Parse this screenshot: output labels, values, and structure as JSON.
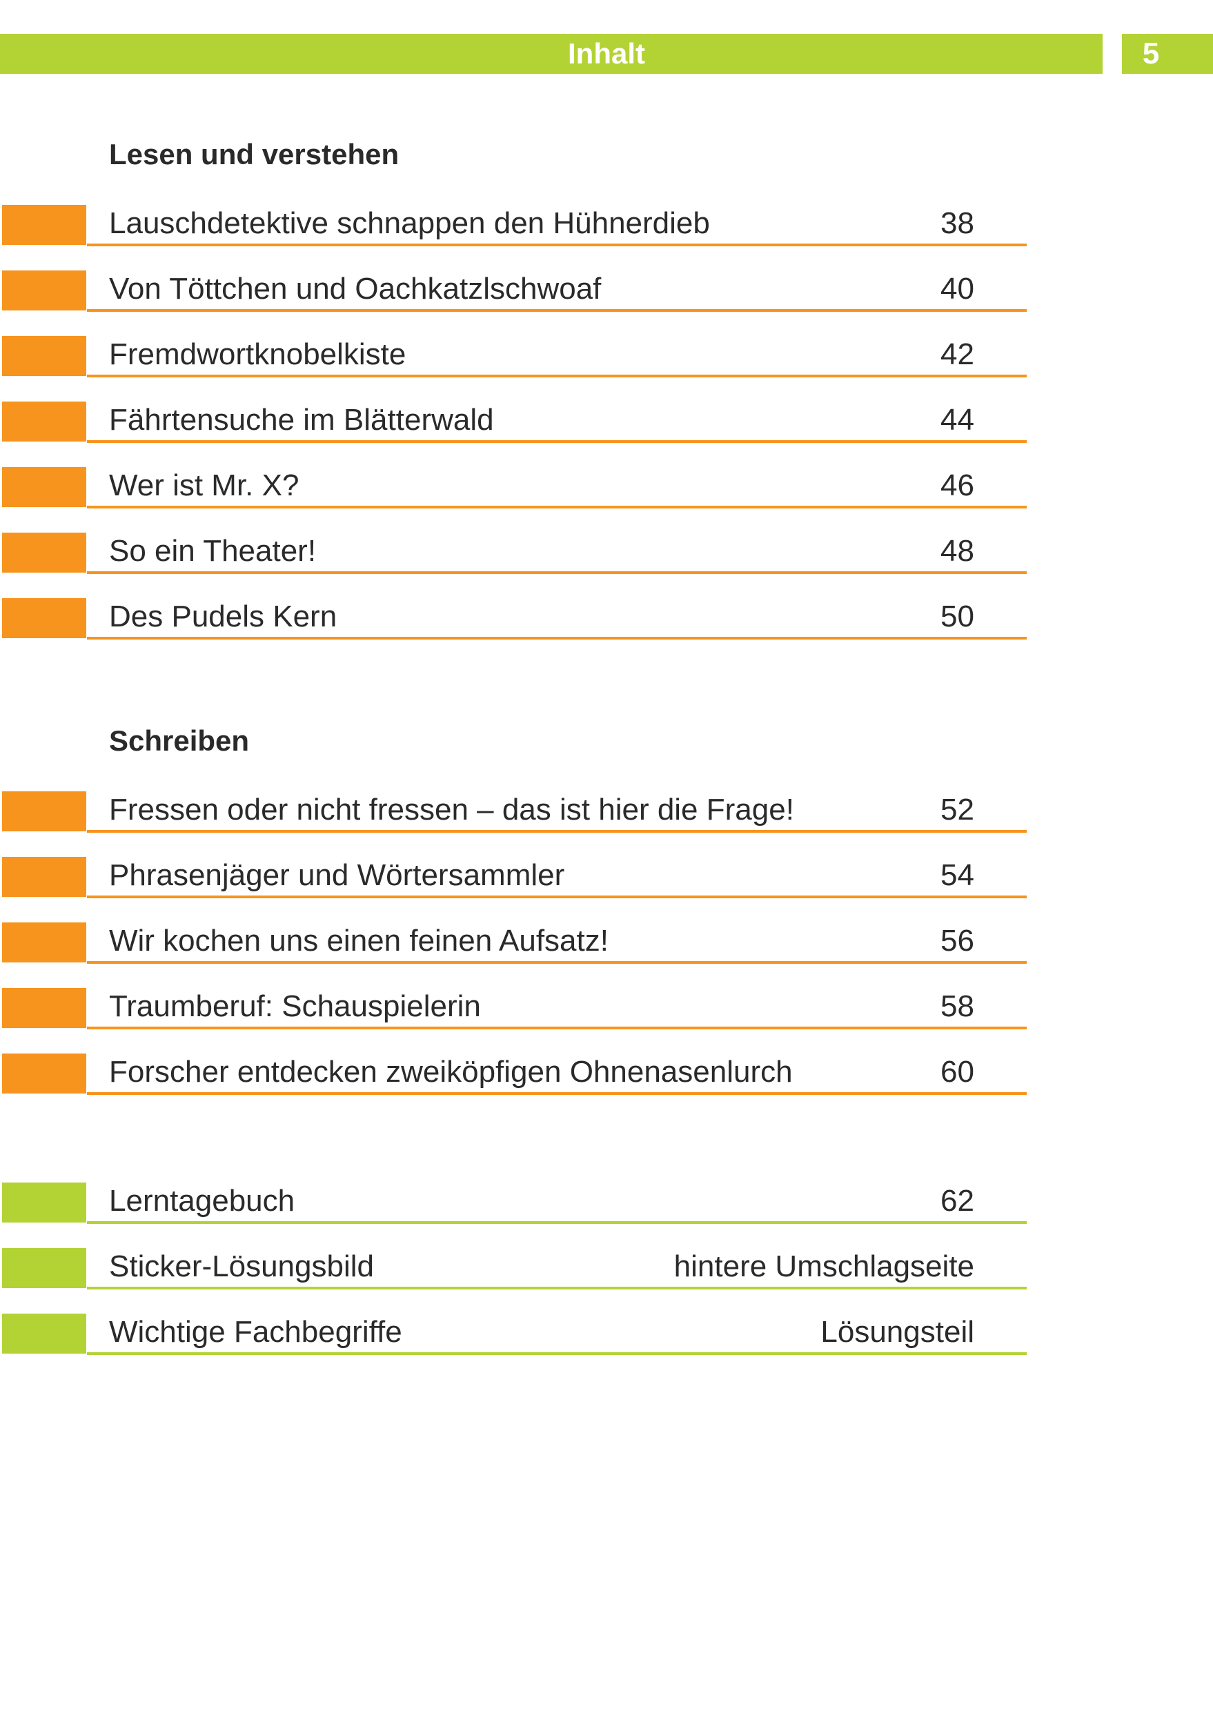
{
  "header": {
    "title": "Inhalt",
    "page_number": "5"
  },
  "colors": {
    "accent_green": "#b3d335",
    "accent_orange": "#f7941d",
    "text": "#2a2a2a"
  },
  "sections": [
    {
      "heading": "Lesen und verstehen",
      "marker_color": "orange",
      "items": [
        {
          "title": "Lauschdetektive schnappen den Hühnerdieb",
          "page": "38"
        },
        {
          "title": "Von Töttchen und Oachkatzlschwoaf",
          "page": "40"
        },
        {
          "title": "Fremdwortknobelkiste",
          "page": "42"
        },
        {
          "title": "Fährtensuche im Blätterwald",
          "page": "44"
        },
        {
          "title": "Wer ist Mr. X?",
          "page": "46"
        },
        {
          "title": "So ein Theater!",
          "page": "48"
        },
        {
          "title": "Des Pudels Kern",
          "page": "50"
        }
      ]
    },
    {
      "heading": "Schreiben",
      "marker_color": "orange",
      "items": [
        {
          "title": "Fressen oder nicht fressen – das ist hier die Frage!",
          "page": "52"
        },
        {
          "title": "Phrasenjäger und Wörtersammler",
          "page": "54"
        },
        {
          "title": "Wir kochen uns einen feinen Aufsatz!",
          "page": "56"
        },
        {
          "title": "Traumberuf: Schauspielerin",
          "page": "58"
        },
        {
          "title": "Forscher entdecken zweiköpfigen Ohnenasenlurch",
          "page": "60"
        }
      ]
    },
    {
      "heading": "",
      "marker_color": "green",
      "items": [
        {
          "title": "Lerntagebuch",
          "page": "62"
        },
        {
          "title": "Sticker-Lösungsbild",
          "page": "hintere Umschlagseite"
        },
        {
          "title": "Wichtige Fachbegriffe",
          "page": "Lösungsteil"
        }
      ]
    }
  ]
}
